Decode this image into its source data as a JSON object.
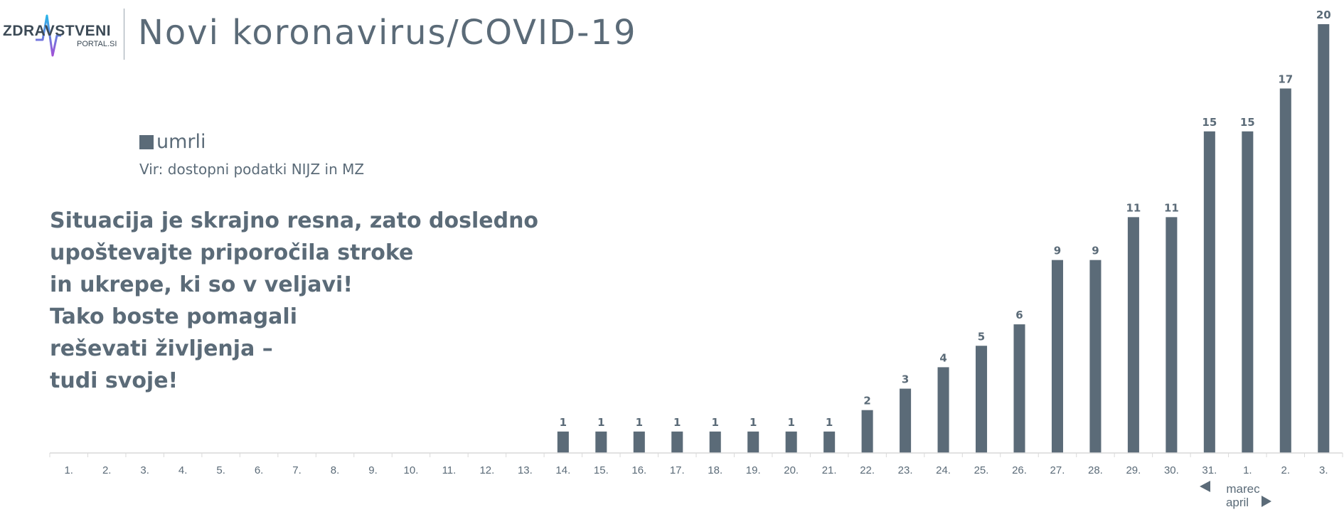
{
  "logo": {
    "name": "ZDRAVSTVENI",
    "site": "PORTAL.SI"
  },
  "title": {
    "main": "Novi koronavirus",
    "separator": "/",
    "sub": "COVID-19"
  },
  "legend": {
    "label": "umrli",
    "color": "#5b6b78"
  },
  "source": "Vir: dostopni podatki NIJZ in MZ",
  "message": {
    "lines": [
      "Situacija je skrajno resna, zato dosledno",
      "upoštevajte priporočila stroke",
      "in ukrepe, ki so v veljavi!",
      "Tako boste pomagali",
      "reševati življenja –",
      "tudi svoje!"
    ]
  },
  "month_markers": {
    "prev": "marec",
    "next": "april"
  },
  "colors": {
    "bar": "#5b6b78",
    "axis": "#d9d9d9",
    "text": "#5b6b78"
  },
  "chart_data": {
    "type": "bar",
    "categories": [
      "1.",
      "2.",
      "3.",
      "4.",
      "5.",
      "6.",
      "7.",
      "8.",
      "9.",
      "10.",
      "11.",
      "12.",
      "13.",
      "14.",
      "15.",
      "16.",
      "17.",
      "18.",
      "19.",
      "20.",
      "21.",
      "22.",
      "23.",
      "24.",
      "25.",
      "26.",
      "27.",
      "28.",
      "29.",
      "30.",
      "31.",
      "1.",
      "2.",
      "3."
    ],
    "series": [
      {
        "name": "umrli",
        "values": [
          0,
          0,
          0,
          0,
          0,
          0,
          0,
          0,
          0,
          0,
          0,
          0,
          0,
          1,
          1,
          1,
          1,
          1,
          1,
          1,
          1,
          2,
          3,
          4,
          5,
          6,
          9,
          9,
          11,
          11,
          15,
          15,
          17,
          20
        ]
      }
    ],
    "data_labels": true,
    "ylim": [
      0,
      20
    ],
    "grid": false,
    "legend_position": "top-left"
  }
}
